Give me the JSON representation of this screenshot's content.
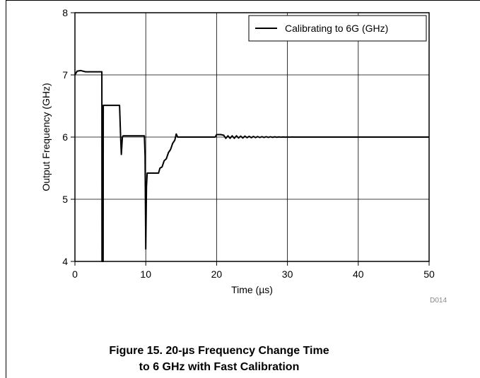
{
  "chart_data": {
    "type": "line",
    "xlabel": "Time (µs)",
    "ylabel": "Output Frequency (GHz)",
    "xlim": [
      0,
      50
    ],
    "ylim": [
      4,
      8
    ],
    "x_ticks": [
      0,
      10,
      20,
      30,
      40,
      50
    ],
    "y_ticks": [
      4,
      5,
      6,
      7,
      8
    ],
    "grid": true,
    "legend_position": "top-right",
    "source_code": "D014",
    "series": [
      {
        "name": "Calibrating to 6G (GHz)",
        "color": "#000000",
        "points": [
          [
            0,
            7.0
          ],
          [
            0.3,
            7.06
          ],
          [
            0.8,
            7.07
          ],
          [
            1.5,
            7.05
          ],
          [
            3.0,
            7.05
          ],
          [
            3.8,
            7.05
          ],
          [
            3.82,
            4.0
          ],
          [
            3.98,
            4.0
          ],
          [
            4.0,
            6.51
          ],
          [
            5.0,
            6.51
          ],
          [
            6.3,
            6.51
          ],
          [
            6.45,
            6.0
          ],
          [
            6.55,
            5.72
          ],
          [
            6.7,
            6.0
          ],
          [
            6.8,
            6.02
          ],
          [
            8.0,
            6.02
          ],
          [
            9.8,
            6.02
          ],
          [
            9.9,
            5.7
          ],
          [
            10.0,
            4.2
          ],
          [
            10.1,
            5.2
          ],
          [
            10.2,
            5.42
          ],
          [
            11.0,
            5.42
          ],
          [
            11.8,
            5.42
          ],
          [
            12.0,
            5.5
          ],
          [
            12.3,
            5.52
          ],
          [
            12.6,
            5.62
          ],
          [
            12.9,
            5.65
          ],
          [
            13.2,
            5.75
          ],
          [
            13.5,
            5.8
          ],
          [
            13.8,
            5.9
          ],
          [
            14.1,
            5.95
          ],
          [
            14.3,
            6.05
          ],
          [
            14.5,
            6.0
          ],
          [
            16.0,
            6.0
          ],
          [
            18.0,
            6.0
          ],
          [
            19.8,
            6.0
          ],
          [
            20.0,
            6.04
          ],
          [
            20.6,
            6.04
          ],
          [
            21.0,
            6.03
          ],
          [
            21.3,
            5.98
          ],
          [
            21.6,
            6.02
          ],
          [
            21.9,
            5.98
          ],
          [
            22.2,
            6.02
          ],
          [
            22.5,
            5.98
          ],
          [
            22.8,
            6.02
          ],
          [
            23.1,
            5.985
          ],
          [
            23.4,
            6.015
          ],
          [
            23.7,
            5.985
          ],
          [
            24.0,
            6.015
          ],
          [
            24.3,
            5.99
          ],
          [
            24.6,
            6.012
          ],
          [
            24.9,
            5.99
          ],
          [
            25.2,
            6.01
          ],
          [
            25.5,
            5.992
          ],
          [
            25.8,
            6.008
          ],
          [
            26.1,
            5.993
          ],
          [
            26.4,
            6.007
          ],
          [
            26.7,
            5.994
          ],
          [
            27.0,
            6.006
          ],
          [
            27.3,
            5.995
          ],
          [
            27.6,
            6.005
          ],
          [
            27.9,
            5.996
          ],
          [
            28.2,
            6.004
          ],
          [
            28.5,
            5.997
          ],
          [
            28.8,
            6.003
          ],
          [
            29.1,
            5.998
          ],
          [
            29.4,
            6.002
          ],
          [
            29.7,
            5.998
          ],
          [
            30.0,
            6.002
          ],
          [
            30.3,
            5.999
          ],
          [
            30.6,
            6.001
          ],
          [
            31.0,
            6.0
          ],
          [
            35.0,
            6.0
          ],
          [
            40.0,
            6.0
          ],
          [
            45.0,
            6.0
          ],
          [
            50.0,
            6.0
          ]
        ]
      }
    ]
  },
  "caption": {
    "line1": "Figure 15. 20-µs Frequency Change Time",
    "line2": "to 6 GHz with Fast Calibration"
  }
}
